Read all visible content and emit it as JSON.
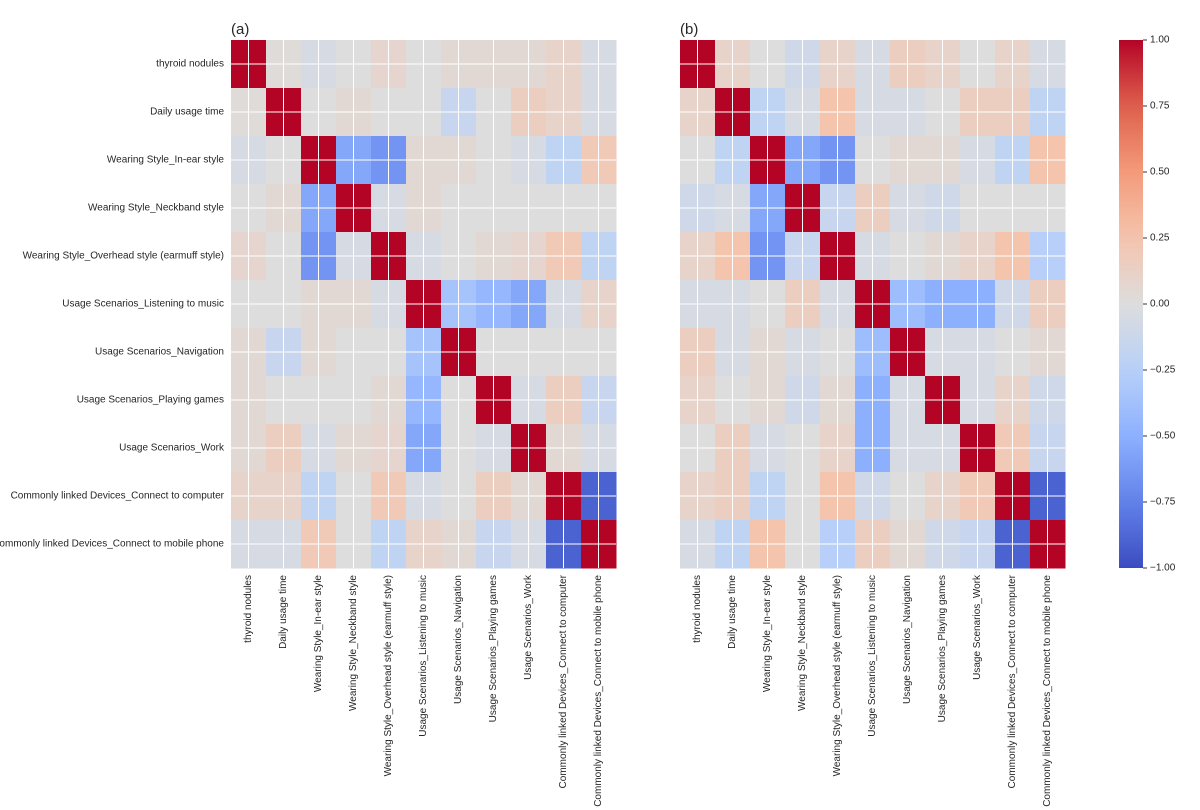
{
  "chart_data": [
    {
      "type": "heatmap",
      "panel_label": "(a)",
      "labels": [
        "thyroid nodules",
        "Daily usage time",
        "Wearing Style_In-ear style",
        "Wearing Style_Neckband style",
        "Wearing Style_Overhead style (earmuff style)",
        "Usage Scenarios_Listening to music",
        "Usage Scenarios_Navigation",
        "Usage Scenarios_Playing games",
        "Usage Scenarios_Work",
        "Commonly linked Devices_Connect to computer",
        "Commonly linked Devices_Connect to mobile phone"
      ],
      "values": [
        [
          1.0,
          0.02,
          -0.05,
          0.0,
          0.08,
          0.0,
          0.05,
          0.05,
          0.05,
          0.1,
          -0.05
        ],
        [
          0.02,
          1.0,
          0.0,
          0.05,
          0.0,
          0.0,
          -0.15,
          0.0,
          0.15,
          0.1,
          -0.05
        ],
        [
          -0.05,
          0.0,
          1.0,
          -0.55,
          -0.65,
          0.05,
          0.05,
          0.0,
          -0.05,
          -0.2,
          0.2
        ],
        [
          0.0,
          0.05,
          -0.55,
          1.0,
          -0.05,
          0.05,
          0.0,
          0.0,
          0.0,
          0.0,
          0.0
        ],
        [
          0.08,
          0.0,
          -0.65,
          -0.05,
          1.0,
          -0.05,
          0.0,
          0.05,
          0.08,
          0.2,
          -0.2
        ],
        [
          0.0,
          0.0,
          0.05,
          0.05,
          -0.05,
          1.0,
          -0.35,
          -0.45,
          -0.55,
          -0.05,
          0.1
        ],
        [
          0.05,
          -0.15,
          0.05,
          0.0,
          0.0,
          -0.35,
          1.0,
          0.0,
          0.0,
          0.0,
          0.0
        ],
        [
          0.05,
          0.0,
          0.0,
          0.0,
          0.05,
          -0.45,
          0.0,
          1.0,
          -0.05,
          0.15,
          -0.15
        ],
        [
          0.05,
          0.15,
          -0.05,
          0.05,
          0.08,
          -0.55,
          0.0,
          -0.05,
          1.0,
          0.05,
          -0.05
        ],
        [
          0.1,
          0.1,
          -0.2,
          0.0,
          0.2,
          -0.05,
          0.0,
          0.15,
          0.05,
          1.0,
          -0.9
        ],
        [
          -0.05,
          -0.05,
          0.2,
          0.0,
          -0.2,
          0.1,
          0.05,
          -0.15,
          -0.05,
          -0.9,
          1.0
        ]
      ],
      "vmin": -1.0,
      "vmax": 1.0,
      "colormap": "coolwarm"
    },
    {
      "type": "heatmap",
      "panel_label": "(b)",
      "labels": [
        "thyroid nodules",
        "Daily usage time",
        "Wearing Style_In-ear style",
        "Wearing Style_Neckband style",
        "Wearing Style_Overhead style (earmuff style)",
        "Usage Scenarios_Listening to music",
        "Usage Scenarios_Navigation",
        "Usage Scenarios_Playing games",
        "Usage Scenarios_Work",
        "Commonly linked Devices_Connect to computer",
        "Commonly linked Devices_Connect to mobile phone"
      ],
      "values": [
        [
          1.0,
          0.1,
          0.0,
          -0.1,
          0.1,
          -0.05,
          0.15,
          0.1,
          0.0,
          0.1,
          -0.05
        ],
        [
          0.1,
          1.0,
          -0.2,
          -0.05,
          0.25,
          -0.05,
          -0.05,
          0.0,
          0.15,
          0.15,
          -0.2
        ],
        [
          0.0,
          -0.2,
          1.0,
          -0.55,
          -0.65,
          0.0,
          0.05,
          0.05,
          -0.05,
          -0.2,
          0.25
        ],
        [
          -0.1,
          -0.05,
          -0.55,
          1.0,
          -0.15,
          0.15,
          -0.05,
          -0.1,
          0.0,
          0.0,
          0.0
        ],
        [
          0.1,
          0.25,
          -0.65,
          -0.15,
          1.0,
          -0.05,
          0.0,
          0.05,
          0.1,
          0.25,
          -0.25
        ],
        [
          -0.05,
          -0.05,
          0.0,
          0.15,
          -0.05,
          1.0,
          -0.4,
          -0.5,
          -0.5,
          -0.1,
          0.15
        ],
        [
          0.15,
          -0.05,
          0.05,
          -0.05,
          0.0,
          -0.4,
          1.0,
          -0.05,
          -0.05,
          0.0,
          0.05
        ],
        [
          0.1,
          0.0,
          0.05,
          -0.1,
          0.05,
          -0.5,
          -0.05,
          1.0,
          -0.05,
          0.1,
          -0.1
        ],
        [
          0.0,
          0.15,
          -0.05,
          0.0,
          0.1,
          -0.5,
          -0.05,
          -0.05,
          1.0,
          0.2,
          -0.15
        ],
        [
          0.1,
          0.15,
          -0.2,
          0.0,
          0.25,
          -0.1,
          0.0,
          0.1,
          0.2,
          1.0,
          -0.9
        ],
        [
          -0.05,
          -0.2,
          0.25,
          0.0,
          -0.25,
          0.15,
          0.05,
          -0.1,
          -0.15,
          -0.9,
          1.0
        ]
      ],
      "vmin": -1.0,
      "vmax": 1.0,
      "colormap": "coolwarm"
    }
  ],
  "colorbar": {
    "ticks": [
      1.0,
      0.75,
      0.5,
      0.25,
      0.0,
      -0.25,
      -0.5,
      -0.75,
      -1.0
    ],
    "tick_labels": [
      "1.00",
      "0.75",
      "0.50",
      "0.25",
      "0.00",
      "−0.25",
      "−0.50",
      "−0.75",
      "−1.00"
    ]
  }
}
